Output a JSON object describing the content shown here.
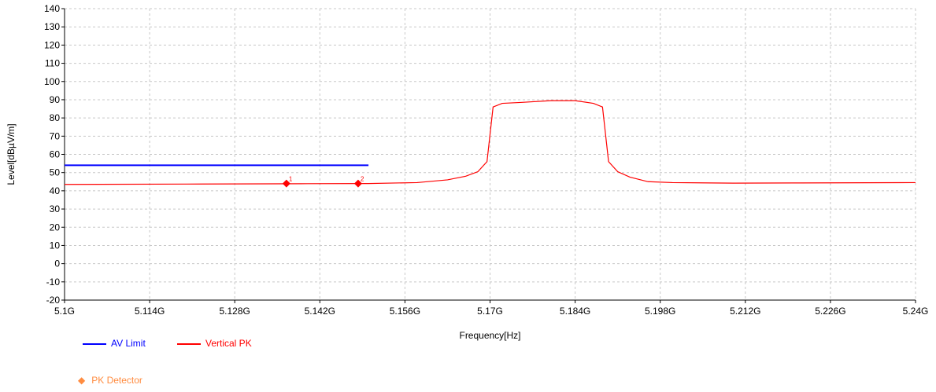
{
  "chart_data": {
    "type": "line",
    "xlabel": "Frequency[Hz]",
    "ylabel": "Level[dBµV/m]",
    "xlim": [
      5.1,
      5.24
    ],
    "ylim": [
      -20,
      140
    ],
    "x_ticks": [
      5.1,
      5.114,
      5.128,
      5.142,
      5.156,
      5.17,
      5.184,
      5.198,
      5.212,
      5.226,
      5.24
    ],
    "x_tick_labels": [
      "5.1G",
      "5.114G",
      "5.128G",
      "5.142G",
      "5.156G",
      "5.17G",
      "5.184G",
      "5.198G",
      "5.212G",
      "5.226G",
      "5.24G"
    ],
    "y_ticks": [
      -20,
      -10,
      0,
      10,
      20,
      30,
      40,
      50,
      60,
      70,
      80,
      90,
      100,
      110,
      120,
      130,
      140
    ],
    "y_tick_labels": [
      "-20",
      "-10",
      "0",
      "10",
      "20",
      "30",
      "40",
      "50",
      "60",
      "70",
      "80",
      "90",
      "100",
      "110",
      "120",
      "130",
      "140"
    ],
    "grid": true,
    "series": [
      {
        "name": "AV Limit",
        "color": "#0000ff",
        "x": [
          5.1,
          5.15
        ],
        "y": [
          54,
          54
        ]
      },
      {
        "name": "Vertical PK",
        "color": "#ff0000",
        "x": [
          5.1,
          5.12,
          5.14,
          5.15,
          5.158,
          5.163,
          5.166,
          5.168,
          5.1695,
          5.1705,
          5.172,
          5.175,
          5.18,
          5.184,
          5.187,
          5.1885,
          5.1895,
          5.191,
          5.193,
          5.196,
          5.2,
          5.21,
          5.22,
          5.24
        ],
        "y": [
          43.5,
          43.7,
          43.9,
          44.0,
          44.5,
          46.0,
          48.0,
          50.5,
          56.0,
          86.0,
          88.0,
          88.5,
          89.5,
          89.5,
          88.0,
          86.0,
          56.0,
          50.5,
          47.5,
          45.0,
          44.5,
          44.2,
          44.3,
          44.5
        ]
      }
    ],
    "markers": [
      {
        "label": "1",
        "x": 5.1365,
        "y": 44.0
      },
      {
        "label": "2",
        "x": 5.1483,
        "y": 44.0
      }
    ],
    "legend": [
      {
        "name": "AV Limit",
        "color": "#0000ff",
        "style": "line"
      },
      {
        "name": "Vertical PK",
        "color": "#ff0000",
        "style": "line"
      },
      {
        "name": "PK Detector",
        "color": "#ff8c40",
        "style": "diamond"
      }
    ],
    "legend_position": "bottom-left"
  }
}
